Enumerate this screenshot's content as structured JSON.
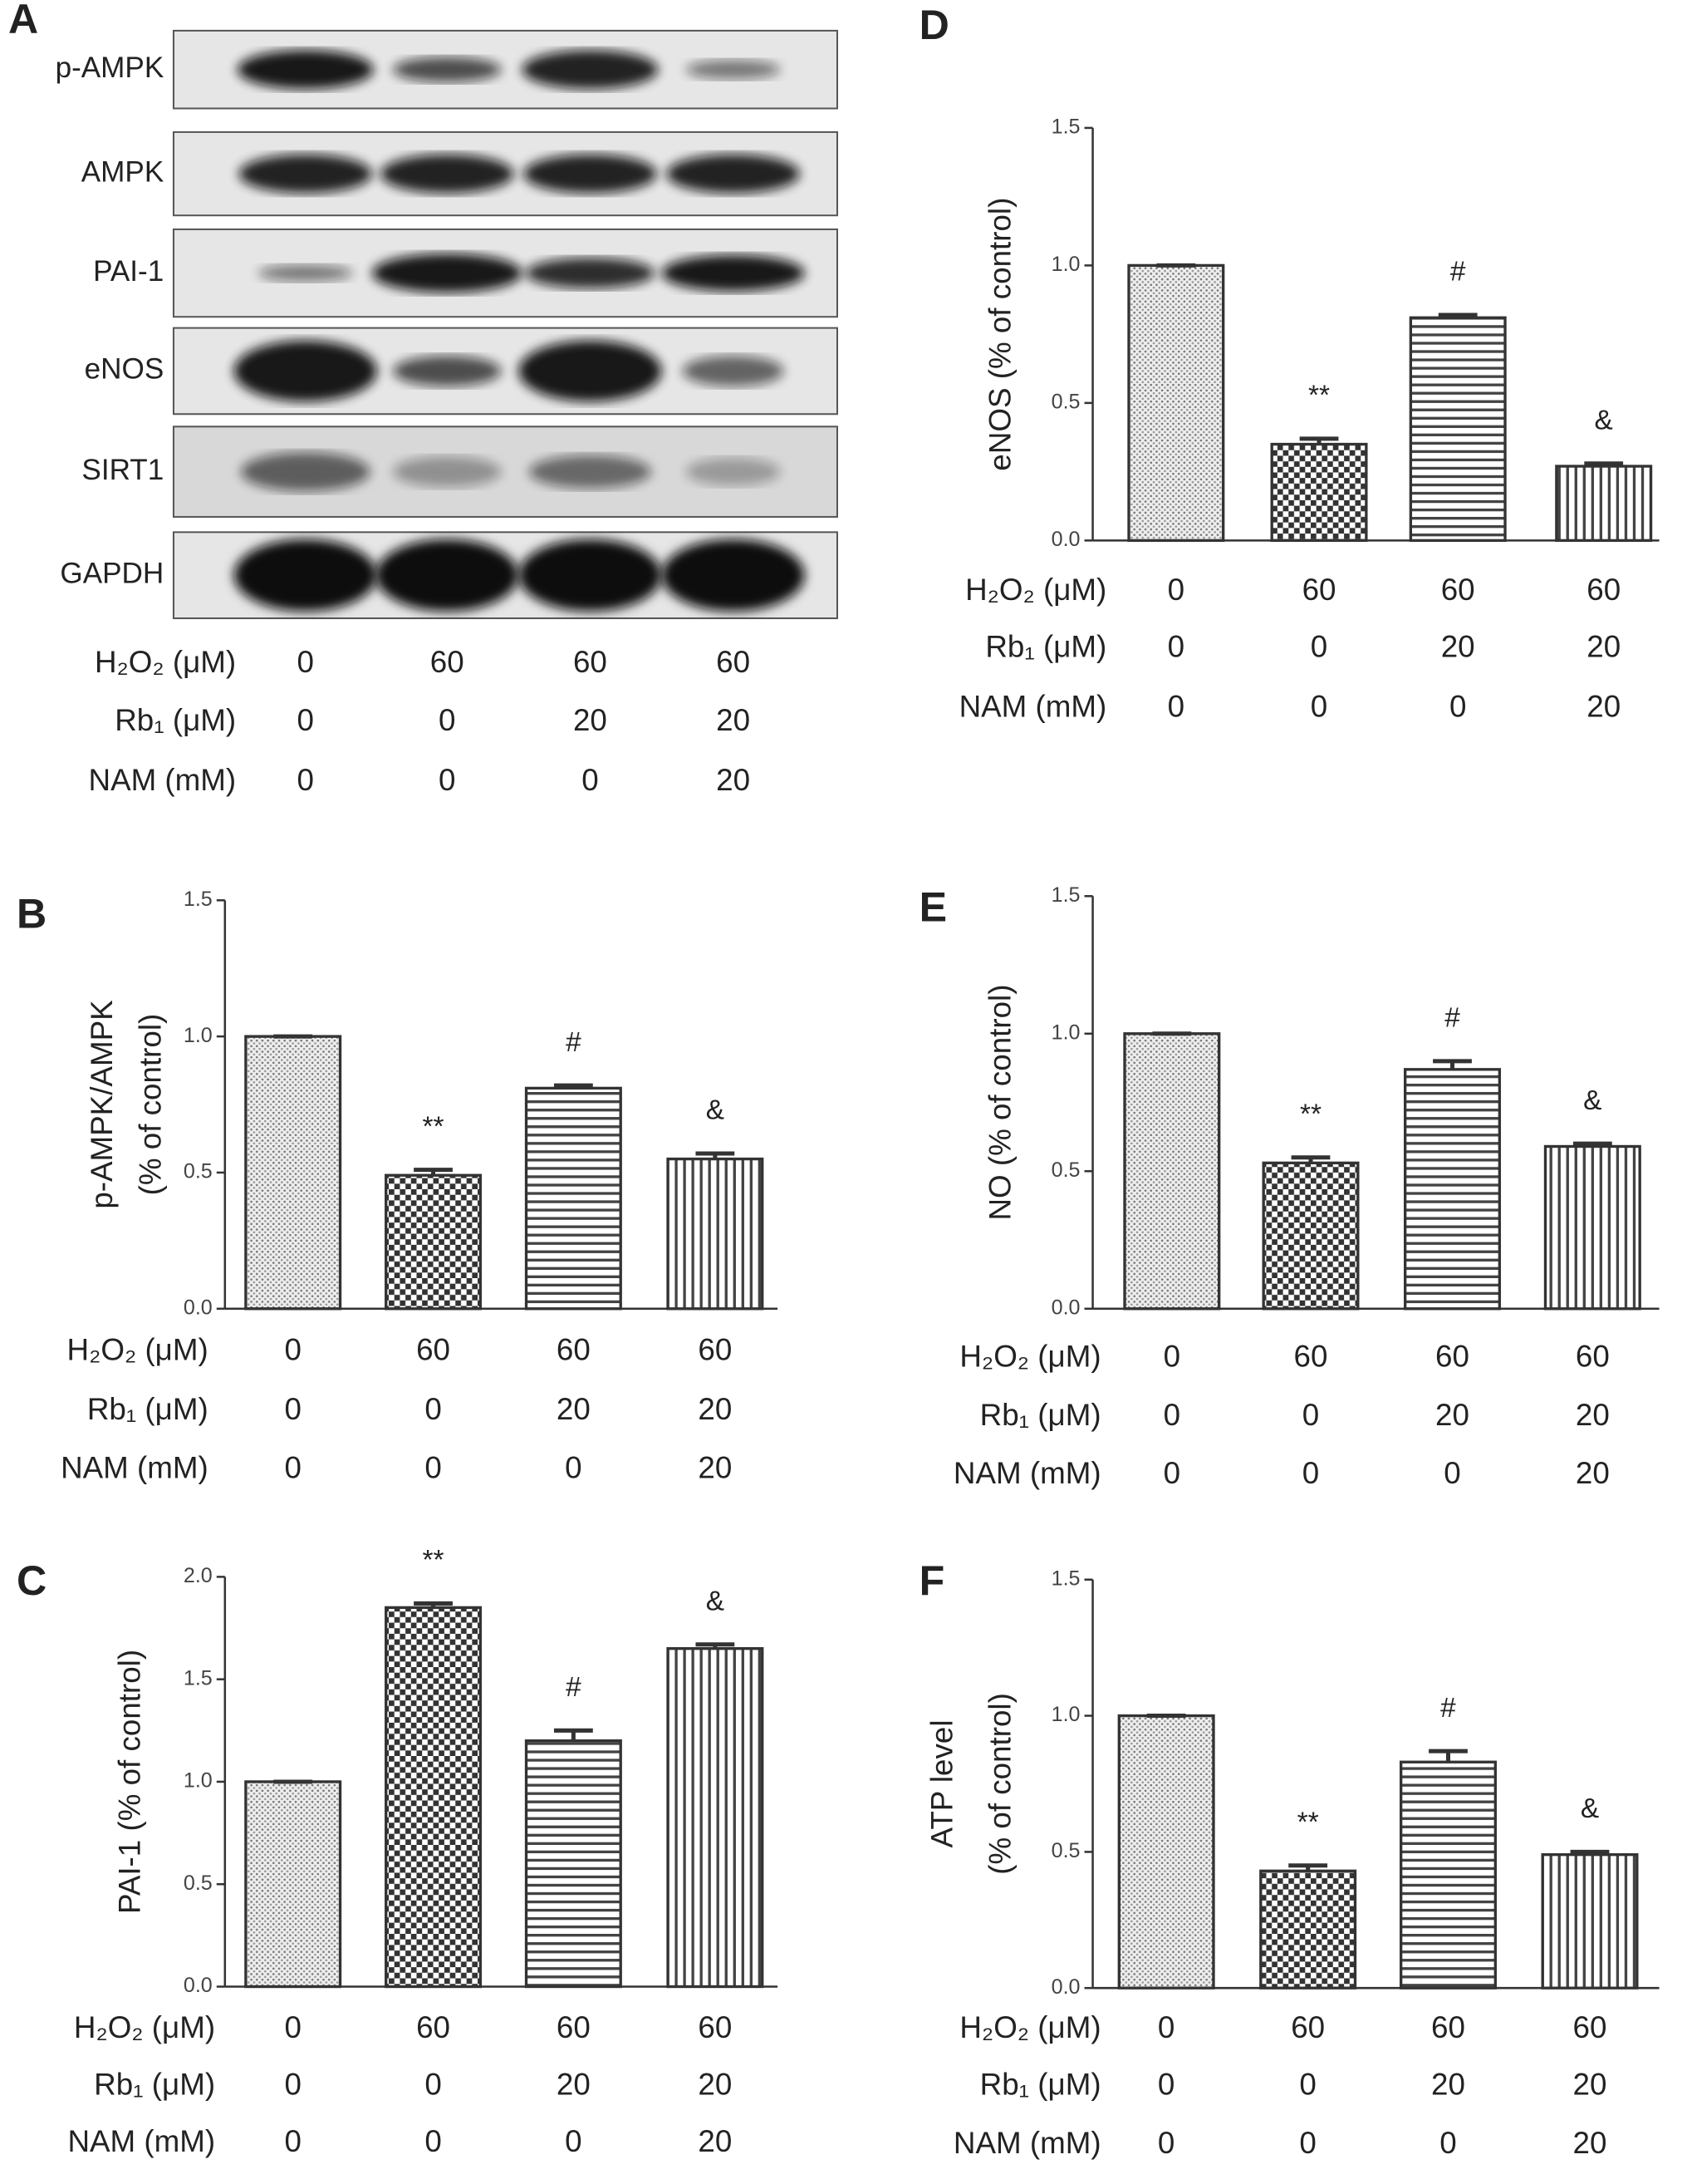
{
  "blot": {
    "panel": "A",
    "bands": [
      "p-AMPK",
      "AMPK",
      "PAI-1",
      "eNOS",
      "SIRT1",
      "GAPDH"
    ],
    "conditions": [
      {
        "label": "H₂O₂ (μM)",
        "values": [
          0,
          60,
          60,
          60
        ]
      },
      {
        "label": "Rb₁ (μM)",
        "values": [
          0,
          0,
          20,
          20
        ]
      },
      {
        "label": "NAM (mM)",
        "values": [
          0,
          0,
          0,
          20
        ]
      }
    ]
  },
  "chart_data": [
    {
      "type": "bar",
      "panel": "B",
      "ylabel": [
        "p-AMPK/AMPK",
        "(% of control)"
      ],
      "values": [
        1.0,
        0.49,
        0.81,
        0.55
      ],
      "errors": [
        0,
        0.02,
        0.01,
        0.02
      ],
      "value_annotations": [
        null,
        "**",
        "#",
        "&"
      ],
      "ylim": [
        0,
        1.5
      ],
      "yticks": [
        {
          "value": 0,
          "label": "0.0"
        },
        {
          "value": 0.5,
          "label": "0.5"
        },
        {
          "value": 1,
          "label": "1.0"
        },
        {
          "value": 1.5,
          "label": "1.5"
        }
      ],
      "conditions": [
        {
          "label": "H₂O₂ (μM)",
          "values": [
            0,
            60,
            60,
            60
          ]
        },
        {
          "label": "Rb₁ (μM)",
          "values": [
            0,
            0,
            20,
            20
          ]
        },
        {
          "label": "NAM (mM)",
          "values": [
            0,
            0,
            0,
            20
          ]
        }
      ]
    },
    {
      "type": "bar",
      "panel": "C",
      "ylabel": [
        "PAI-1 (% of control)"
      ],
      "values": [
        1.0,
        1.85,
        1.2,
        1.65
      ],
      "errors": [
        0,
        0.02,
        0.05,
        0.02
      ],
      "value_annotations": [
        null,
        "**",
        "#",
        "&"
      ],
      "ylim": [
        0,
        2
      ],
      "yticks": [
        {
          "value": 0,
          "label": "0.0"
        },
        {
          "value": 0.5,
          "label": "0.5"
        },
        {
          "value": 1,
          "label": "1.0"
        },
        {
          "value": 1.5,
          "label": "1.5"
        },
        {
          "value": 2,
          "label": "2.0"
        }
      ],
      "conditions": [
        {
          "label": "H₂O₂ (μM)",
          "values": [
            0,
            60,
            60,
            60
          ]
        },
        {
          "label": "Rb₁ (μM)",
          "values": [
            0,
            0,
            20,
            20
          ]
        },
        {
          "label": "NAM (mM)",
          "values": [
            0,
            0,
            0,
            20
          ]
        }
      ]
    },
    {
      "type": "bar",
      "panel": "D",
      "ylabel": [
        "eNOS (% of control)"
      ],
      "values": [
        1.0,
        0.35,
        0.81,
        0.27
      ],
      "errors": [
        0,
        0.02,
        0.01,
        0.01
      ],
      "value_annotations": [
        null,
        "**",
        "#",
        "&"
      ],
      "ylim": [
        0,
        1.5
      ],
      "yticks": [
        {
          "value": 0,
          "label": "0.0"
        },
        {
          "value": 0.5,
          "label": "0.5"
        },
        {
          "value": 1,
          "label": "1.0"
        },
        {
          "value": 1.5,
          "label": "1.5"
        }
      ],
      "conditions": [
        {
          "label": "H₂O₂ (μM)",
          "values": [
            0,
            60,
            60,
            60
          ]
        },
        {
          "label": "Rb₁ (μM)",
          "values": [
            0,
            0,
            20,
            20
          ]
        },
        {
          "label": "NAM (mM)",
          "values": [
            0,
            0,
            0,
            20
          ]
        }
      ]
    },
    {
      "type": "bar",
      "panel": "E",
      "ylabel": [
        "NO (% of control)"
      ],
      "values": [
        1.0,
        0.53,
        0.87,
        0.59
      ],
      "errors": [
        0,
        0.02,
        0.03,
        0.01
      ],
      "value_annotations": [
        null,
        "**",
        "#",
        "&"
      ],
      "ylim": [
        0,
        1.5
      ],
      "yticks": [
        {
          "value": 0,
          "label": "0.0"
        },
        {
          "value": 0.5,
          "label": "0.5"
        },
        {
          "value": 1,
          "label": "1.0"
        },
        {
          "value": 1.5,
          "label": "1.5"
        }
      ],
      "conditions": [
        {
          "label": "H₂O₂ (μM)",
          "values": [
            0,
            60,
            60,
            60
          ]
        },
        {
          "label": "Rb₁ (μM)",
          "values": [
            0,
            0,
            20,
            20
          ]
        },
        {
          "label": "NAM (mM)",
          "values": [
            0,
            0,
            0,
            20
          ]
        }
      ]
    },
    {
      "type": "bar",
      "panel": "F",
      "ylabel": [
        "ATP level",
        "(% of control)"
      ],
      "values": [
        1.0,
        0.43,
        0.83,
        0.49
      ],
      "errors": [
        0,
        0.02,
        0.04,
        0.01
      ],
      "value_annotations": [
        null,
        "**",
        "#",
        "&"
      ],
      "ylim": [
        0,
        1.5
      ],
      "yticks": [
        {
          "value": 0,
          "label": "0.0"
        },
        {
          "value": 0.5,
          "label": "0.5"
        },
        {
          "value": 1,
          "label": "1.0"
        },
        {
          "value": 1.5,
          "label": "1.5"
        }
      ],
      "conditions": [
        {
          "label": "H₂O₂ (μM)",
          "values": [
            0,
            60,
            60,
            60
          ]
        },
        {
          "label": "Rb₁ (μM)",
          "values": [
            0,
            0,
            20,
            20
          ]
        },
        {
          "label": "NAM (mM)",
          "values": [
            0,
            0,
            0,
            20
          ]
        }
      ]
    }
  ]
}
